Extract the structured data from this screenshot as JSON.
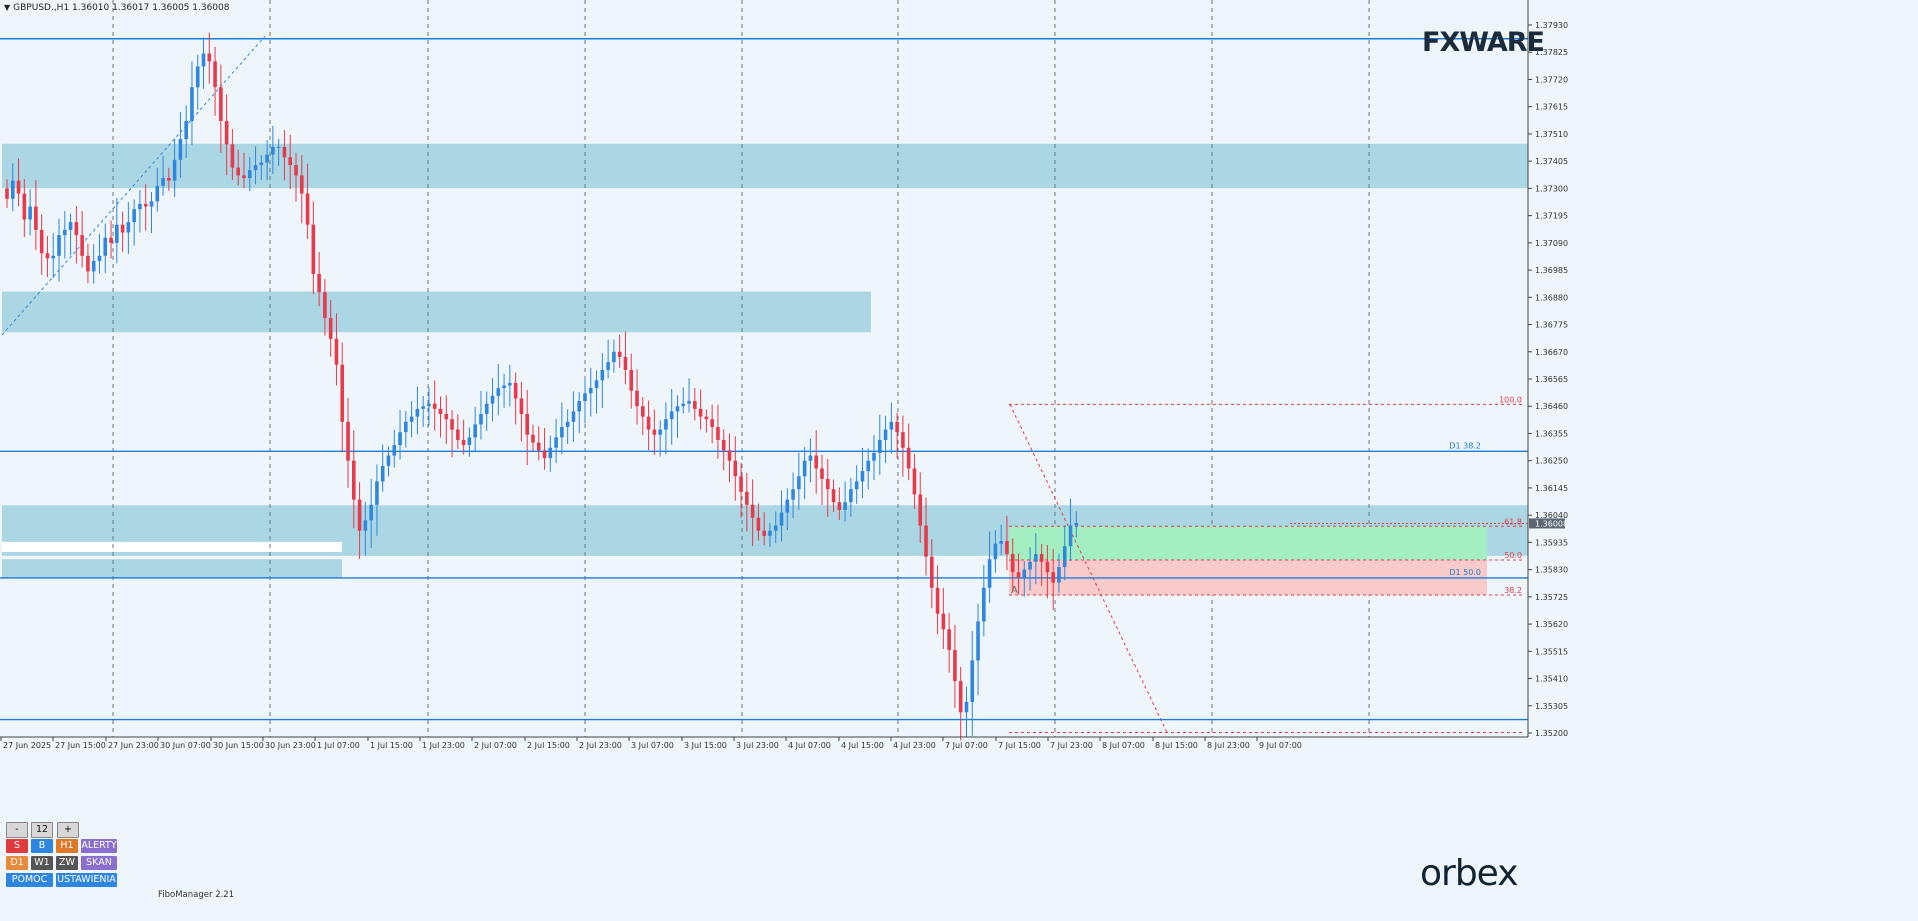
{
  "header": {
    "symbol_line": "GBPUSD.,H1  1.36010 1.36017 1.36005 1.36008"
  },
  "logos": {
    "top_right": "FXWARE",
    "bottom_right": "orbex"
  },
  "panel": {
    "minus": "-",
    "count": "12",
    "plus": "+",
    "s": "S",
    "b": "B",
    "h1": "H1",
    "alerty": "ALERTY",
    "d1": "D1",
    "w1": "W1",
    "zw": "ZW",
    "skan": "SKAN",
    "pomoc": "POMOC",
    "ustawienia": "USTAWIENIA",
    "fibo_manager": "FiboManager 2.21",
    "colors": {
      "s": "#e03a3e",
      "b": "#2f86e0",
      "h1": "#e0782a",
      "alerty": "#8a6fd1",
      "d1": "#e88a3a",
      "w1": "#555555",
      "zw": "#555555",
      "skan": "#8a6fd1",
      "pomoc": "#2f86e0",
      "ustawienia": "#2f86e0"
    }
  },
  "chart_data": {
    "type": "candlestick",
    "symbol": "GBPUSD.",
    "timeframe": "H1",
    "ohlc_last": {
      "open": 1.3601,
      "high": 1.36017,
      "low": 1.36005,
      "close": 1.36008
    },
    "current_price_label": "1.36008",
    "y_ticks": [
      "1.37930",
      "1.37825",
      "1.37720",
      "1.37615",
      "1.37510",
      "1.37405",
      "1.37300",
      "1.37195",
      "1.37090",
      "1.36985",
      "1.36880",
      "1.36775",
      "1.36670",
      "1.36565",
      "1.36460",
      "1.36355",
      "1.36250",
      "1.36145",
      "1.36040",
      "1.35935",
      "1.35830",
      "1.35725",
      "1.35620",
      "1.35515",
      "1.35410",
      "1.35305",
      "1.35200"
    ],
    "ylim": [
      1.352,
      1.3793
    ],
    "x_ticks": [
      "27 Jun 2025",
      "27 Jun 15:00",
      "27 Jun 23:00",
      "30 Jun 07:00",
      "30 Jun 15:00",
      "30 Jun 23:00",
      "1 Jul 07:00",
      "1 Jul 15:00",
      "1 Jul 23:00",
      "2 Jul 07:00",
      "2 Jul 15:00",
      "2 Jul 23:00",
      "3 Jul 07:00",
      "3 Jul 15:00",
      "3 Jul 23:00",
      "4 Jul 07:00",
      "4 Jul 15:00",
      "4 Jul 23:00",
      "7 Jul 07:00",
      "7 Jul 15:00",
      "7 Jul 23:00",
      "8 Jul 07:00",
      "8 Jul 15:00",
      "8 Jul 23:00",
      "9 Jul 07:00"
    ],
    "candle_colors": {
      "up": "#2e86de",
      "down": "#e8394a"
    },
    "grid": true,
    "closes": [
      1.3726,
      1.3733,
      1.3728,
      1.3718,
      1.3723,
      1.3714,
      1.3705,
      1.3703,
      1.3704,
      1.3712,
      1.3714,
      1.3717,
      1.3712,
      1.3704,
      1.3698,
      1.3702,
      1.3704,
      1.3711,
      1.3709,
      1.3716,
      1.3713,
      1.3717,
      1.3722,
      1.3724,
      1.3723,
      1.3725,
      1.3731,
      1.3734,
      1.3733,
      1.3741,
      1.3749,
      1.3756,
      1.3769,
      1.3777,
      1.3782,
      1.3779,
      1.3769,
      1.3756,
      1.3747,
      1.3738,
      1.3735,
      1.3734,
      1.3737,
      1.3739,
      1.374,
      1.3743,
      1.3746,
      1.3746,
      1.3742,
      1.3739,
      1.3735,
      1.3728,
      1.3716,
      1.3697,
      1.369,
      1.368,
      1.3672,
      1.3662,
      1.364,
      1.3625,
      1.361,
      1.3598,
      1.3602,
      1.3608,
      1.3617,
      1.3623,
      1.3627,
      1.3631,
      1.3636,
      1.364,
      1.3642,
      1.3645,
      1.3646,
      1.3647,
      1.3645,
      1.3643,
      1.3641,
      1.3637,
      1.3633,
      1.3631,
      1.3634,
      1.3639,
      1.3643,
      1.3647,
      1.365,
      1.3653,
      1.3654,
      1.3655,
      1.3649,
      1.3643,
      1.3635,
      1.3632,
      1.3629,
      1.3626,
      1.363,
      1.3634,
      1.3638,
      1.364,
      1.3644,
      1.3648,
      1.3651,
      1.3653,
      1.3656,
      1.366,
      1.3663,
      1.3667,
      1.3665,
      1.366,
      1.3652,
      1.3646,
      1.3642,
      1.3637,
      1.3635,
      1.3637,
      1.3641,
      1.3644,
      1.3646,
      1.3647,
      1.3648,
      1.3645,
      1.3642,
      1.3641,
      1.3638,
      1.3633,
      1.3629,
      1.3625,
      1.3619,
      1.3613,
      1.3608,
      1.3603,
      1.3598,
      1.3596,
      1.3598,
      1.36,
      1.3605,
      1.361,
      1.3614,
      1.3619,
      1.3625,
      1.3627,
      1.3622,
      1.3618,
      1.3614,
      1.3609,
      1.3606,
      1.3609,
      1.3614,
      1.3617,
      1.3621,
      1.3625,
      1.3628,
      1.3633,
      1.3637,
      1.364,
      1.3636,
      1.363,
      1.3622,
      1.3612,
      1.36,
      1.3588,
      1.3576,
      1.3566,
      1.356,
      1.3552,
      1.354,
      1.3528,
      1.3532,
      1.3548,
      1.3563,
      1.3576,
      1.3587,
      1.3593,
      1.3594,
      1.3589,
      1.3582,
      1.358,
      1.3583,
      1.3586,
      1.3589,
      1.3586,
      1.3582,
      1.3578,
      1.3584,
      1.3592,
      1.36,
      1.3601
    ],
    "support_resistance_zones": [
      {
        "from": 1.37301,
        "to": 1.37472
      },
      {
        "from": 1.36745,
        "to": 1.36902
      },
      {
        "from": 1.35883,
        "to": 1.36078
      },
      {
        "from": 1.35796,
        "to": 1.3587
      }
    ],
    "horizontal_levels": [
      {
        "price": 1.37877
      },
      {
        "price": 1.36286,
        "label": "D1 38.2"
      },
      {
        "price": 1.35798,
        "label": "D1 50.0"
      },
      {
        "price": 1.35252
      }
    ],
    "fibonacci": {
      "point_label": "A",
      "levels": [
        {
          "label": "100.0",
          "price": 1.36467
        },
        {
          "label": "61.8",
          "price": 1.35997
        },
        {
          "label": "50.0",
          "price": 1.35867
        },
        {
          "label": "38.2",
          "price": 1.35732
        }
      ],
      "low": 1.35202
    }
  }
}
